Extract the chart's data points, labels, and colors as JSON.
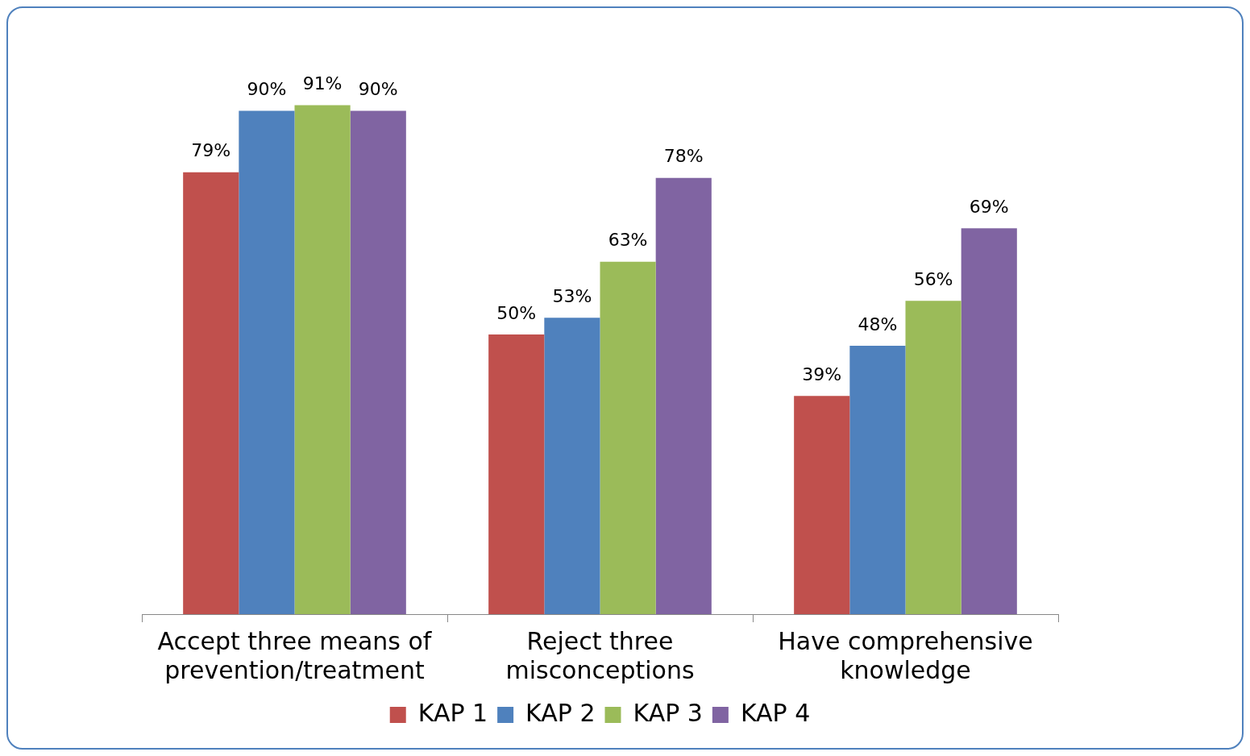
{
  "chart_data": {
    "type": "bar",
    "categories": [
      "Accept three means of prevention/treatment",
      "Reject three misconceptions",
      "Have comprehensive knowledge"
    ],
    "series": [
      {
        "name": "KAP 1",
        "color": "#c0504d",
        "values": [
          79,
          50,
          39
        ],
        "value_labels": [
          "79%",
          "50%",
          "39%"
        ]
      },
      {
        "name": "KAP 2",
        "color": "#4f81bd",
        "values": [
          90,
          53,
          48
        ],
        "value_labels": [
          "90%",
          "53%",
          "48%"
        ]
      },
      {
        "name": "KAP 3",
        "color": "#9bbb59",
        "values": [
          91,
          63,
          56
        ],
        "value_labels": [
          "91%",
          "63%",
          "56%"
        ]
      },
      {
        "name": "KAP 4",
        "color": "#8064a2",
        "values": [
          90,
          78,
          69
        ],
        "value_labels": [
          "90%",
          "78%",
          "69%"
        ]
      }
    ],
    "tick_labels": "x",
    "grid": false,
    "legend": "bottom"
  }
}
